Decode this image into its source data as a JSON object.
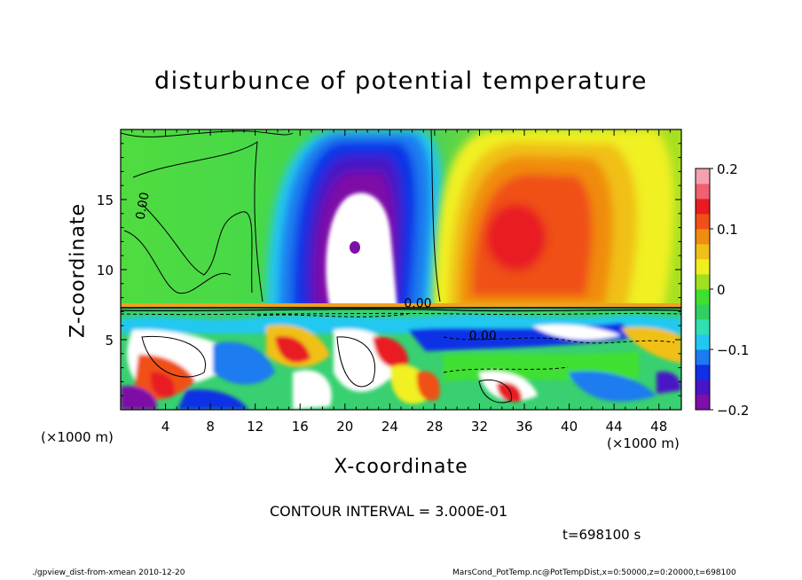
{
  "chart_data": {
    "type": "heatmap",
    "title": "disturbunce of potential temperature",
    "xlabel": "X-coordinate",
    "ylabel": "Z-coordinate",
    "x_unit_left": "(×1000 m)",
    "x_unit_right": "(×1000 m)",
    "xlim": [
      0,
      50
    ],
    "ylim": [
      0,
      20
    ],
    "x_ticks": [
      4,
      8,
      12,
      16,
      20,
      24,
      28,
      32,
      36,
      40,
      44,
      48
    ],
    "x_tick_labels": [
      "4",
      "8",
      "12",
      "16",
      "20",
      "24",
      "28",
      "32",
      "36",
      "40",
      "44",
      "48"
    ],
    "y_ticks": [
      5,
      10,
      15
    ],
    "y_tick_labels": [
      "5",
      "10",
      "15"
    ],
    "colorbar": {
      "range": [
        -0.2,
        0.2
      ],
      "ticks": [
        0.2,
        0.1,
        0,
        -0.1,
        -0.2
      ],
      "tick_labels": [
        "0.2",
        "0.1",
        "0",
        "−0.1",
        "−0.2"
      ],
      "colors": [
        "#7e0fa8",
        "#4a14c4",
        "#1030e6",
        "#1a7cf0",
        "#20c8f0",
        "#30e0b0",
        "#30d060",
        "#40e030",
        "#a0e020",
        "#f0f020",
        "#f0c018",
        "#f08c10",
        "#f05018",
        "#e81c20",
        "#f06070",
        "#f4a0b0"
      ]
    },
    "contour_labels": [
      "0.00",
      "0.00",
      "0.00"
    ],
    "grid": false,
    "contour_interval": "CONTOUR INTERVAL = 3.000E-01"
  },
  "time_label": "t=698100 s",
  "footer_left": "./gpview_dist-from-xmean 2010-12-20",
  "footer_right": "MarsCond_PotTemp.nc@PotTempDist,x=0:50000,z=0:20000,t=698100"
}
